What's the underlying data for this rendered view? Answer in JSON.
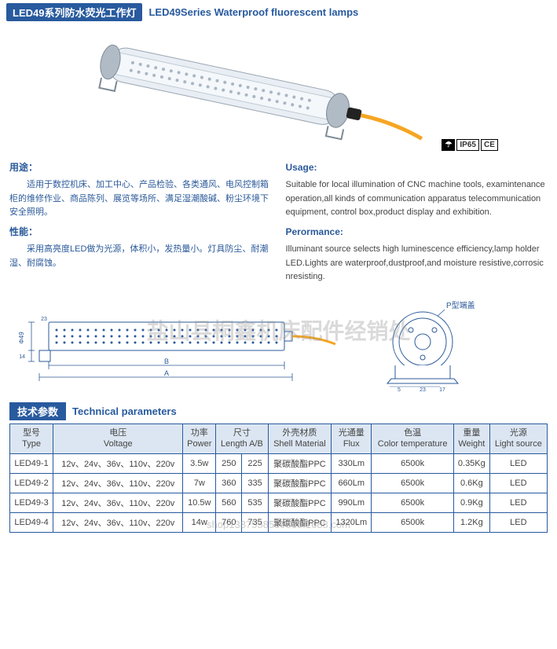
{
  "header": {
    "title_cn": "LED49系列防水荧光工作灯",
    "title_en": "LED49Series Waterproof fluorescent lamps"
  },
  "badges": {
    "protect": "IP65",
    "ce": "CE"
  },
  "desc": {
    "usage_cn_label": "用途：",
    "usage_cn": "适用于数控机床、加工中心、产品检验、各类通风、电风控制箱柜的维修作业、商品陈列、展览等场所、满足湿潮酸碱、粉尘环境下安全照明。",
    "perf_cn_label": "性能：",
    "perf_cn": "采用高亮度LED做为光源，体积小，发热量小。灯具防尘、耐潮湿、耐腐蚀。",
    "usage_en_label": "Usage:",
    "usage_en": "Suitable for local illumination of CNC machine tools, examintenance operation,all kinds of communication apparatus telecommunication equipment, control box,product display and exhibition.",
    "perf_en_label": "Perormance:",
    "perf_en": "Illuminant source selects high luminescence efficiency,lamp holder LED.Lights are waterproof,dustproof,and moisture resistive,corrosic nresisting."
  },
  "watermark": "盐山县桐鑫机床配件经销处",
  "diagram": {
    "label_a": "A",
    "label_b": "B",
    "label_phi": "Φ49",
    "label_23": "23",
    "label_14": "14",
    "cap_label": "P型端盖",
    "cap_17": "17",
    "cap_23": "23",
    "cap_5": "5"
  },
  "tech": {
    "label_cn": "技术参数",
    "label_en": "Technical parameters"
  },
  "table": {
    "headers": [
      {
        "cn": "型号",
        "en": "Type"
      },
      {
        "cn": "电压",
        "en": "Voltage"
      },
      {
        "cn": "功率",
        "en": "Power"
      },
      {
        "cn": "尺寸",
        "en": "Length A/B"
      },
      {
        "cn": "外壳材质",
        "en": "Shell Material"
      },
      {
        "cn": "光通量",
        "en": "Flux"
      },
      {
        "cn": "色温",
        "en": "Color temperature"
      },
      {
        "cn": "重量",
        "en": "Weight"
      },
      {
        "cn": "光源",
        "en": "Light source"
      }
    ],
    "rows": [
      {
        "type": "LED49-1",
        "voltage": "12v、24v、36v、110v、220v",
        "power": "3.5w",
        "len_a": "250",
        "len_b": "225",
        "shell": "聚碳酸酯PPC",
        "flux": "330Lm",
        "temp": "6500k",
        "weight": "0.35Kg",
        "source": "LED"
      },
      {
        "type": "LED49-2",
        "voltage": "12v、24v、36v、110v、220v",
        "power": "7w",
        "len_a": "360",
        "len_b": "335",
        "shell": "聚碳酸酯PPC",
        "flux": "660Lm",
        "temp": "6500k",
        "weight": "0.6Kg",
        "source": "LED"
      },
      {
        "type": "LED49-3",
        "voltage": "12v、24v、36v、110v、220v",
        "power": "10.5w",
        "len_a": "560",
        "len_b": "535",
        "shell": "聚碳酸酯PPC",
        "flux": "990Lm",
        "temp": "6500k",
        "weight": "0.9Kg",
        "source": "LED"
      },
      {
        "type": "LED49-4",
        "voltage": "12v、24v、36v、110v、220v",
        "power": "14w",
        "len_a": "760",
        "len_b": "735",
        "shell": "聚碳酸酯PPC",
        "flux": "1320Lm",
        "temp": "6500k",
        "weight": "1.2Kg",
        "source": "LED"
      }
    ]
  },
  "footer_wm": "shop138755858981​8.1688.com",
  "colors": {
    "brand": "#285a9e",
    "header_bg": "#dce6f2",
    "text": "#444444",
    "lamp_body": "#cfd8e0",
    "lamp_tube": "#e8eef4",
    "cable": "#f5a623"
  }
}
